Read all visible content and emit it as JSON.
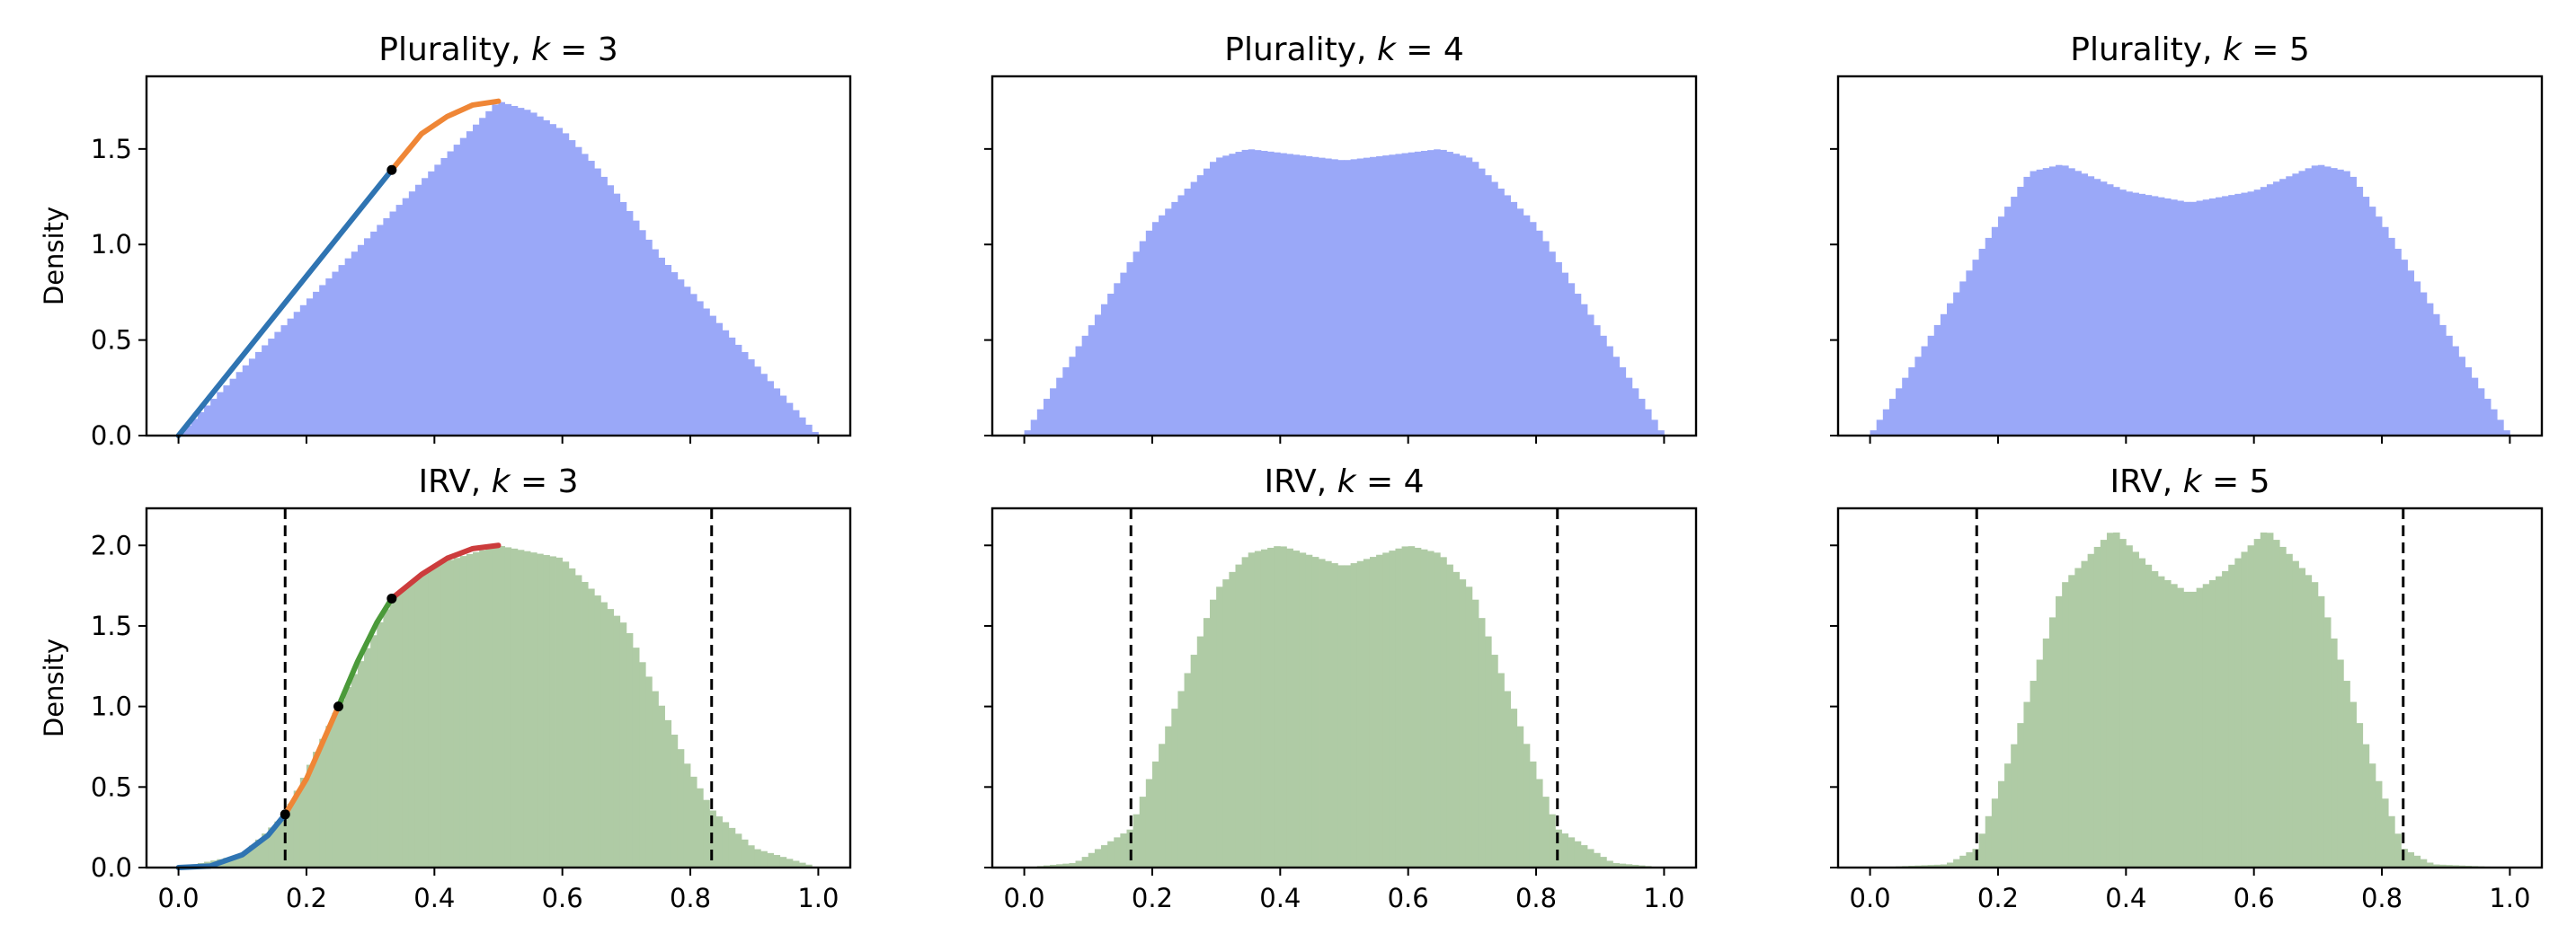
{
  "chart_data": [
    {
      "type": "bar",
      "row": 0,
      "col": 0,
      "title": {
        "prefix": "Plurality, ",
        "k": "3"
      },
      "ylabel": "Density",
      "xlim": [
        -0.05,
        1.05
      ],
      "ylim": [
        0,
        1.88
      ],
      "yticks": [
        "0.0",
        "0.5",
        "1.0",
        "1.5"
      ],
      "ytick_values": [
        0,
        0.5,
        1.0,
        1.5
      ],
      "xticks": [],
      "xtick_values": [
        0,
        0.2,
        0.4,
        0.6,
        0.8,
        1.0
      ],
      "bar_color": "#9aa8f8",
      "histogram": {
        "bins": 100,
        "range": [
          0,
          1
        ],
        "hist_x": [
          0,
          0.5,
          0.55,
          0.6,
          0.65,
          0.7,
          0.75,
          1.0
        ],
        "hist_y": [
          0,
          1.75,
          1.7,
          1.6,
          1.42,
          1.2,
          0.95,
          0
        ]
      },
      "curves": [
        {
          "color": "#2f74b2",
          "points": [
            [
              0,
              0
            ],
            [
              0.3333,
              1.39
            ]
          ]
        },
        {
          "color": "#ef8636",
          "points": [
            [
              0.3333,
              1.39
            ],
            [
              0.38,
              1.58
            ],
            [
              0.42,
              1.67
            ],
            [
              0.46,
              1.73
            ],
            [
              0.5,
              1.75
            ]
          ]
        }
      ],
      "dots": [
        [
          0.3333,
          1.39
        ]
      ],
      "vlines": []
    },
    {
      "type": "bar",
      "row": 0,
      "col": 1,
      "title": {
        "prefix": "Plurality, ",
        "k": "4"
      },
      "ylabel": "",
      "xlim": [
        -0.05,
        1.05
      ],
      "ylim": [
        0,
        1.88
      ],
      "yticks": [],
      "ytick_values": [
        0,
        0.5,
        1.0,
        1.5
      ],
      "xticks": [],
      "xtick_values": [
        0,
        0.2,
        0.4,
        0.6,
        0.8,
        1.0
      ],
      "bar_color": "#9aa8f8",
      "histogram": {
        "bins": 100,
        "range": [
          0,
          1
        ],
        "hist_x": [
          0,
          0.1,
          0.2,
          0.3,
          0.35,
          0.4,
          0.5,
          0.6,
          0.65,
          0.7,
          0.8,
          0.9,
          1.0
        ],
        "hist_y": [
          0,
          0.55,
          1.1,
          1.45,
          1.5,
          1.48,
          1.44,
          1.48,
          1.5,
          1.45,
          1.1,
          0.55,
          0
        ]
      },
      "curves": [],
      "dots": [],
      "vlines": []
    },
    {
      "type": "bar",
      "row": 0,
      "col": 2,
      "title": {
        "prefix": "Plurality, ",
        "k": "5"
      },
      "ylabel": "",
      "xlim": [
        -0.05,
        1.05
      ],
      "ylim": [
        0,
        1.88
      ],
      "yticks": [],
      "ytick_values": [
        0,
        0.5,
        1.0,
        1.5
      ],
      "xticks": [],
      "xtick_values": [
        0,
        0.2,
        0.4,
        0.6,
        0.8,
        1.0
      ],
      "bar_color": "#9aa8f8",
      "histogram": {
        "bins": 100,
        "range": [
          0,
          1
        ],
        "hist_x": [
          0,
          0.1,
          0.2,
          0.25,
          0.3,
          0.4,
          0.5,
          0.6,
          0.7,
          0.75,
          0.8,
          0.9,
          1.0
        ],
        "hist_y": [
          0,
          0.55,
          1.12,
          1.38,
          1.42,
          1.28,
          1.22,
          1.28,
          1.42,
          1.38,
          1.12,
          0.55,
          0
        ]
      },
      "curves": [],
      "dots": [],
      "vlines": []
    },
    {
      "type": "bar",
      "row": 1,
      "col": 0,
      "title": {
        "prefix": "IRV, ",
        "k": "3"
      },
      "ylabel": "Density",
      "xlim": [
        -0.05,
        1.05
      ],
      "ylim": [
        0,
        2.23
      ],
      "yticks": [
        "0.0",
        "0.5",
        "1.0",
        "1.5",
        "2.0"
      ],
      "ytick_values": [
        0,
        0.5,
        1.0,
        1.5,
        2.0
      ],
      "xticks": [
        "0.0",
        "0.2",
        "0.4",
        "0.6",
        "0.8",
        "1.0"
      ],
      "xtick_values": [
        0,
        0.2,
        0.4,
        0.6,
        0.8,
        1.0
      ],
      "bar_color": "#afcba5",
      "histogram": {
        "bins": 100,
        "range": [
          0,
          1
        ],
        "hist_x": [
          0,
          0.1,
          0.1667,
          0.25,
          0.3333,
          0.4,
          0.5,
          0.6,
          0.7,
          0.75,
          0.8,
          0.8333,
          0.9,
          1.0
        ],
        "hist_y": [
          0,
          0.08,
          0.33,
          1.0,
          1.67,
          1.88,
          2.0,
          1.92,
          1.5,
          1.05,
          0.6,
          0.36,
          0.12,
          0
        ]
      },
      "curves": [
        {
          "color": "#2f74b2",
          "points": [
            [
              0,
              0
            ],
            [
              0.05,
              0.01
            ],
            [
              0.1,
              0.08
            ],
            [
              0.14,
              0.2
            ],
            [
              0.1667,
              0.33
            ]
          ]
        },
        {
          "color": "#ef8636",
          "points": [
            [
              0.1667,
              0.33
            ],
            [
              0.2,
              0.55
            ],
            [
              0.23,
              0.82
            ],
            [
              0.25,
              1.0
            ]
          ]
        },
        {
          "color": "#4b9a3a",
          "points": [
            [
              0.25,
              1.0
            ],
            [
              0.28,
              1.28
            ],
            [
              0.31,
              1.52
            ],
            [
              0.3333,
              1.67
            ]
          ]
        },
        {
          "color": "#cc3c3c",
          "points": [
            [
              0.3333,
              1.67
            ],
            [
              0.38,
              1.82
            ],
            [
              0.42,
              1.92
            ],
            [
              0.46,
              1.98
            ],
            [
              0.5,
              2.0
            ]
          ]
        }
      ],
      "dots": [
        [
          0.1667,
          0.33
        ],
        [
          0.25,
          1.0
        ],
        [
          0.3333,
          1.67
        ]
      ],
      "vlines": [
        0.1667,
        0.8333
      ]
    },
    {
      "type": "bar",
      "row": 1,
      "col": 1,
      "title": {
        "prefix": "IRV, ",
        "k": "4"
      },
      "ylabel": "",
      "xlim": [
        -0.05,
        1.05
      ],
      "ylim": [
        0,
        2.23
      ],
      "yticks": [],
      "ytick_values": [
        0,
        0.5,
        1.0,
        1.5,
        2.0
      ],
      "xticks": [
        "0.0",
        "0.2",
        "0.4",
        "0.6",
        "0.8",
        "1.0"
      ],
      "xtick_values": [
        0,
        0.2,
        0.4,
        0.6,
        0.8,
        1.0
      ],
      "bar_color": "#afcba5",
      "histogram": {
        "bins": 100,
        "range": [
          0,
          1
        ],
        "hist_x": [
          0,
          0.08,
          0.1667,
          0.25,
          0.3,
          0.35,
          0.4,
          0.5,
          0.6,
          0.65,
          0.7,
          0.75,
          0.8333,
          0.92,
          1.0
        ],
        "hist_y": [
          0,
          0.03,
          0.24,
          1.15,
          1.72,
          1.95,
          2.0,
          1.87,
          2.0,
          1.95,
          1.72,
          1.15,
          0.24,
          0.03,
          0
        ]
      },
      "curves": [],
      "dots": [],
      "vlines": [
        0.1667,
        0.8333
      ]
    },
    {
      "type": "bar",
      "row": 1,
      "col": 2,
      "title": {
        "prefix": "IRV, ",
        "k": "5"
      },
      "ylabel": "",
      "xlim": [
        -0.05,
        1.05
      ],
      "ylim": [
        0,
        2.23
      ],
      "yticks": [],
      "ytick_values": [
        0,
        0.5,
        1.0,
        1.5,
        2.0
      ],
      "xticks": [
        "0.0",
        "0.2",
        "0.4",
        "0.6",
        "0.8",
        "1.0"
      ],
      "xtick_values": [
        0,
        0.2,
        0.4,
        0.6,
        0.8,
        1.0
      ],
      "bar_color": "#afcba5",
      "histogram": {
        "bins": 100,
        "range": [
          0,
          1
        ],
        "hist_x": [
          0,
          0.12,
          0.1667,
          0.22,
          0.3,
          0.38,
          0.45,
          0.5,
          0.55,
          0.62,
          0.7,
          0.78,
          0.8333,
          0.88,
          1.0
        ],
        "hist_y": [
          0,
          0.02,
          0.12,
          0.7,
          1.75,
          2.1,
          1.82,
          1.7,
          1.82,
          2.1,
          1.75,
          0.7,
          0.12,
          0.02,
          0
        ]
      },
      "curves": [],
      "dots": [],
      "vlines": [
        0.1667,
        0.8333
      ]
    }
  ]
}
